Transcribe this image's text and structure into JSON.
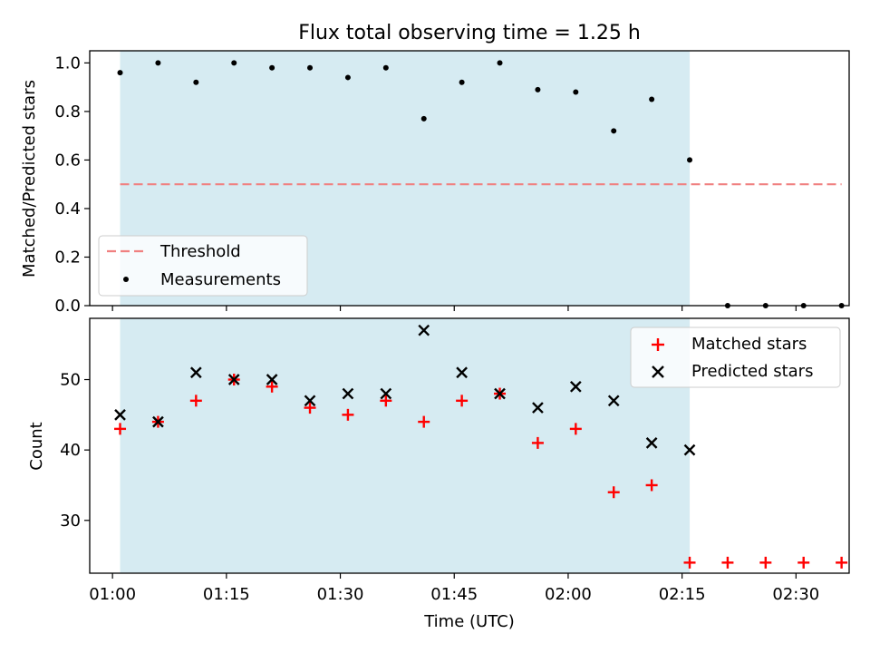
{
  "figure": {
    "title": "Flux total observing time = 1.25 h",
    "xlabel": "Time (UTC)",
    "top_ylabel": "Matched/Predicted stars",
    "bottom_ylabel": "Count"
  },
  "colors": {
    "shade": "#add8e6",
    "threshold": "#f08080",
    "measurement": "#000000",
    "matched": "#ff0000",
    "predicted": "#000000"
  },
  "chart_data": [
    {
      "type": "scatter",
      "panel": "top",
      "x_unit": "time (UTC)",
      "xlim": [
        "00:57",
        "02:37"
      ],
      "ylim": [
        0,
        1.05
      ],
      "x_ticks": [
        "01:00",
        "01:15",
        "01:30",
        "01:45",
        "02:00",
        "02:15",
        "02:30"
      ],
      "y_ticks": [
        "0.0",
        "0.2",
        "0.4",
        "0.6",
        "0.8",
        "1.0"
      ],
      "shaded_span": [
        "01:01",
        "02:16"
      ],
      "threshold": {
        "name": "Threshold",
        "value": 0.5,
        "x": [
          "01:01",
          "02:36"
        ]
      },
      "series": [
        {
          "name": "Measurements",
          "x": [
            "01:01",
            "01:06",
            "01:11",
            "01:16",
            "01:21",
            "01:26",
            "01:31",
            "01:36",
            "01:41",
            "01:46",
            "01:51",
            "01:56",
            "02:01",
            "02:06",
            "02:11",
            "02:16",
            "02:21",
            "02:26",
            "02:31",
            "02:36"
          ],
          "y": [
            0.96,
            1.0,
            0.92,
            1.0,
            0.98,
            0.98,
            0.94,
            0.98,
            0.77,
            0.92,
            1.0,
            0.89,
            0.88,
            0.72,
            0.85,
            0.6,
            0.0,
            0.0,
            0.0,
            0.0
          ]
        }
      ],
      "legend": {
        "placement": "lower-left",
        "entries": [
          "Threshold",
          "Measurements"
        ]
      }
    },
    {
      "type": "scatter",
      "panel": "bottom",
      "x_unit": "time (UTC)",
      "xlim": [
        "00:57",
        "02:37"
      ],
      "ylim": [
        22.5,
        58.7
      ],
      "x_ticks": [
        "01:00",
        "01:15",
        "01:30",
        "01:45",
        "02:00",
        "02:15",
        "02:30"
      ],
      "y_ticks": [
        "30",
        "40",
        "50"
      ],
      "shaded_span": [
        "01:01",
        "02:16"
      ],
      "series": [
        {
          "name": "Matched stars",
          "marker": "+",
          "x": [
            "01:01",
            "01:06",
            "01:11",
            "01:16",
            "01:21",
            "01:26",
            "01:31",
            "01:36",
            "01:41",
            "01:46",
            "01:51",
            "01:56",
            "02:01",
            "02:06",
            "02:11",
            "02:16",
            "02:21",
            "02:26",
            "02:31",
            "02:36"
          ],
          "y": [
            43,
            44,
            47,
            50,
            49,
            46,
            45,
            47,
            44,
            47,
            48,
            41,
            43,
            34,
            35,
            24,
            24,
            24,
            24,
            24
          ]
        },
        {
          "name": "Predicted stars",
          "marker": "x",
          "x": [
            "01:01",
            "01:06",
            "01:11",
            "01:16",
            "01:21",
            "01:26",
            "01:31",
            "01:36",
            "01:41",
            "01:46",
            "01:51",
            "01:56",
            "02:01",
            "02:06",
            "02:11",
            "02:16"
          ],
          "y": [
            45,
            44,
            51,
            50,
            50,
            47,
            48,
            48,
            57,
            51,
            48,
            46,
            49,
            47,
            41,
            40
          ]
        }
      ],
      "legend": {
        "placement": "upper-right",
        "entries": [
          "Matched stars",
          "Predicted stars"
        ]
      }
    }
  ]
}
